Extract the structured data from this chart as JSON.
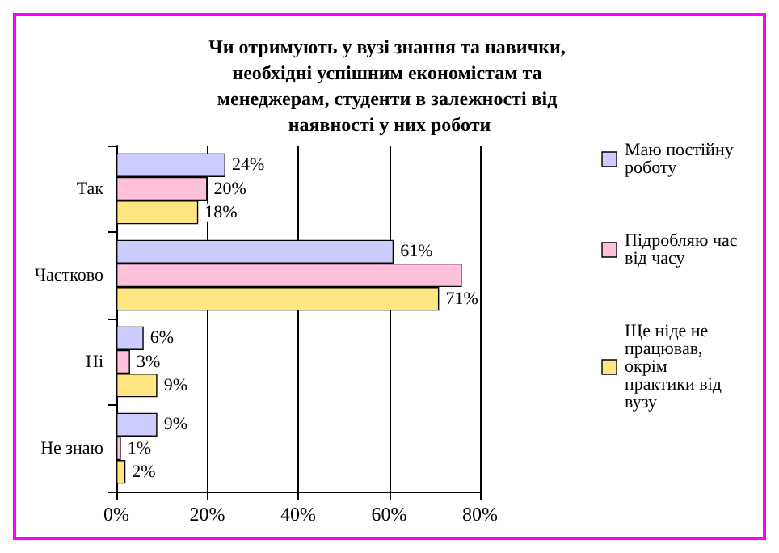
{
  "chart_data": {
    "type": "bar",
    "orientation": "horizontal",
    "title": "Чи отримують у вузі знання та навички, необхідні успішним економістам та менеджерам, студенти в залежності від наявності у них роботи",
    "categories": [
      "Так",
      "Частково",
      "Ні",
      "Не знаю"
    ],
    "series": [
      {
        "name": "Маю постійну роботу",
        "color": "#ccccff",
        "values": [
          24,
          61,
          6,
          9
        ],
        "value_labels": [
          "24%",
          "61%",
          "6%",
          "9%"
        ]
      },
      {
        "name": "Підробляю час від часу",
        "color": "#ffc0dc",
        "values": [
          20,
          76,
          3,
          1
        ],
        "value_labels": [
          "20%",
          null,
          "3%",
          "1%"
        ]
      },
      {
        "name": "Ще ніде не працював, окрім практики від вузу",
        "color": "#ffe680",
        "values": [
          18,
          71,
          9,
          2
        ],
        "value_labels": [
          "18%",
          "71%",
          "9%",
          "2%"
        ]
      }
    ],
    "xlim": [
      0,
      80
    ],
    "xticks": [
      {
        "value": 0,
        "label": "0%"
      },
      {
        "value": 20,
        "label": "20%"
      },
      {
        "value": 40,
        "label": "40%"
      },
      {
        "value": 60,
        "label": "60%"
      },
      {
        "value": 80,
        "label": "80%"
      }
    ],
    "grid": "x",
    "legend": "right"
  }
}
